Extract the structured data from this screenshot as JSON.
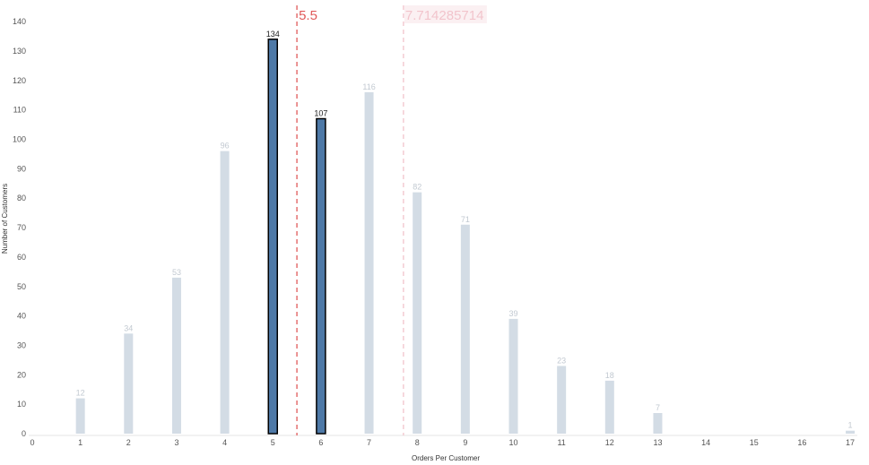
{
  "chart_data": {
    "type": "bar",
    "x": [
      1,
      2,
      3,
      4,
      5,
      6,
      7,
      8,
      9,
      10,
      11,
      12,
      13,
      17
    ],
    "values": [
      12,
      34,
      53,
      96,
      134,
      107,
      116,
      82,
      71,
      39,
      23,
      18,
      7,
      1
    ],
    "highlighted_x": [
      5,
      6
    ],
    "xlabel": "Orders Per Customer",
    "ylabel": "Number of Customers",
    "xlim": [
      0,
      17
    ],
    "ylim": [
      0,
      140
    ],
    "x_ticks": [
      "0",
      "1",
      "2",
      "3",
      "4",
      "5",
      "6",
      "7",
      "8",
      "9",
      "10",
      "11",
      "12",
      "13",
      "14",
      "15",
      "16",
      "17"
    ],
    "y_ticks": [
      "0",
      "10",
      "20",
      "30",
      "40",
      "50",
      "60",
      "70",
      "80",
      "90",
      "100",
      "110",
      "120",
      "130",
      "140"
    ],
    "reference_lines": [
      {
        "value": 5.5,
        "label": "5.5",
        "style": "dashed",
        "color": "#e05a5a"
      },
      {
        "value": 7.714285714,
        "label": "7.714285714",
        "style": "dashed",
        "color": "#f2c4cc"
      }
    ],
    "colors": {
      "highlight_bar": "#4e79a7",
      "highlight_border": "#000000",
      "dim_bar": "#d3dce5",
      "dim_label": "#c2c9d1",
      "highlight_label": "#222222"
    },
    "grid": false
  }
}
